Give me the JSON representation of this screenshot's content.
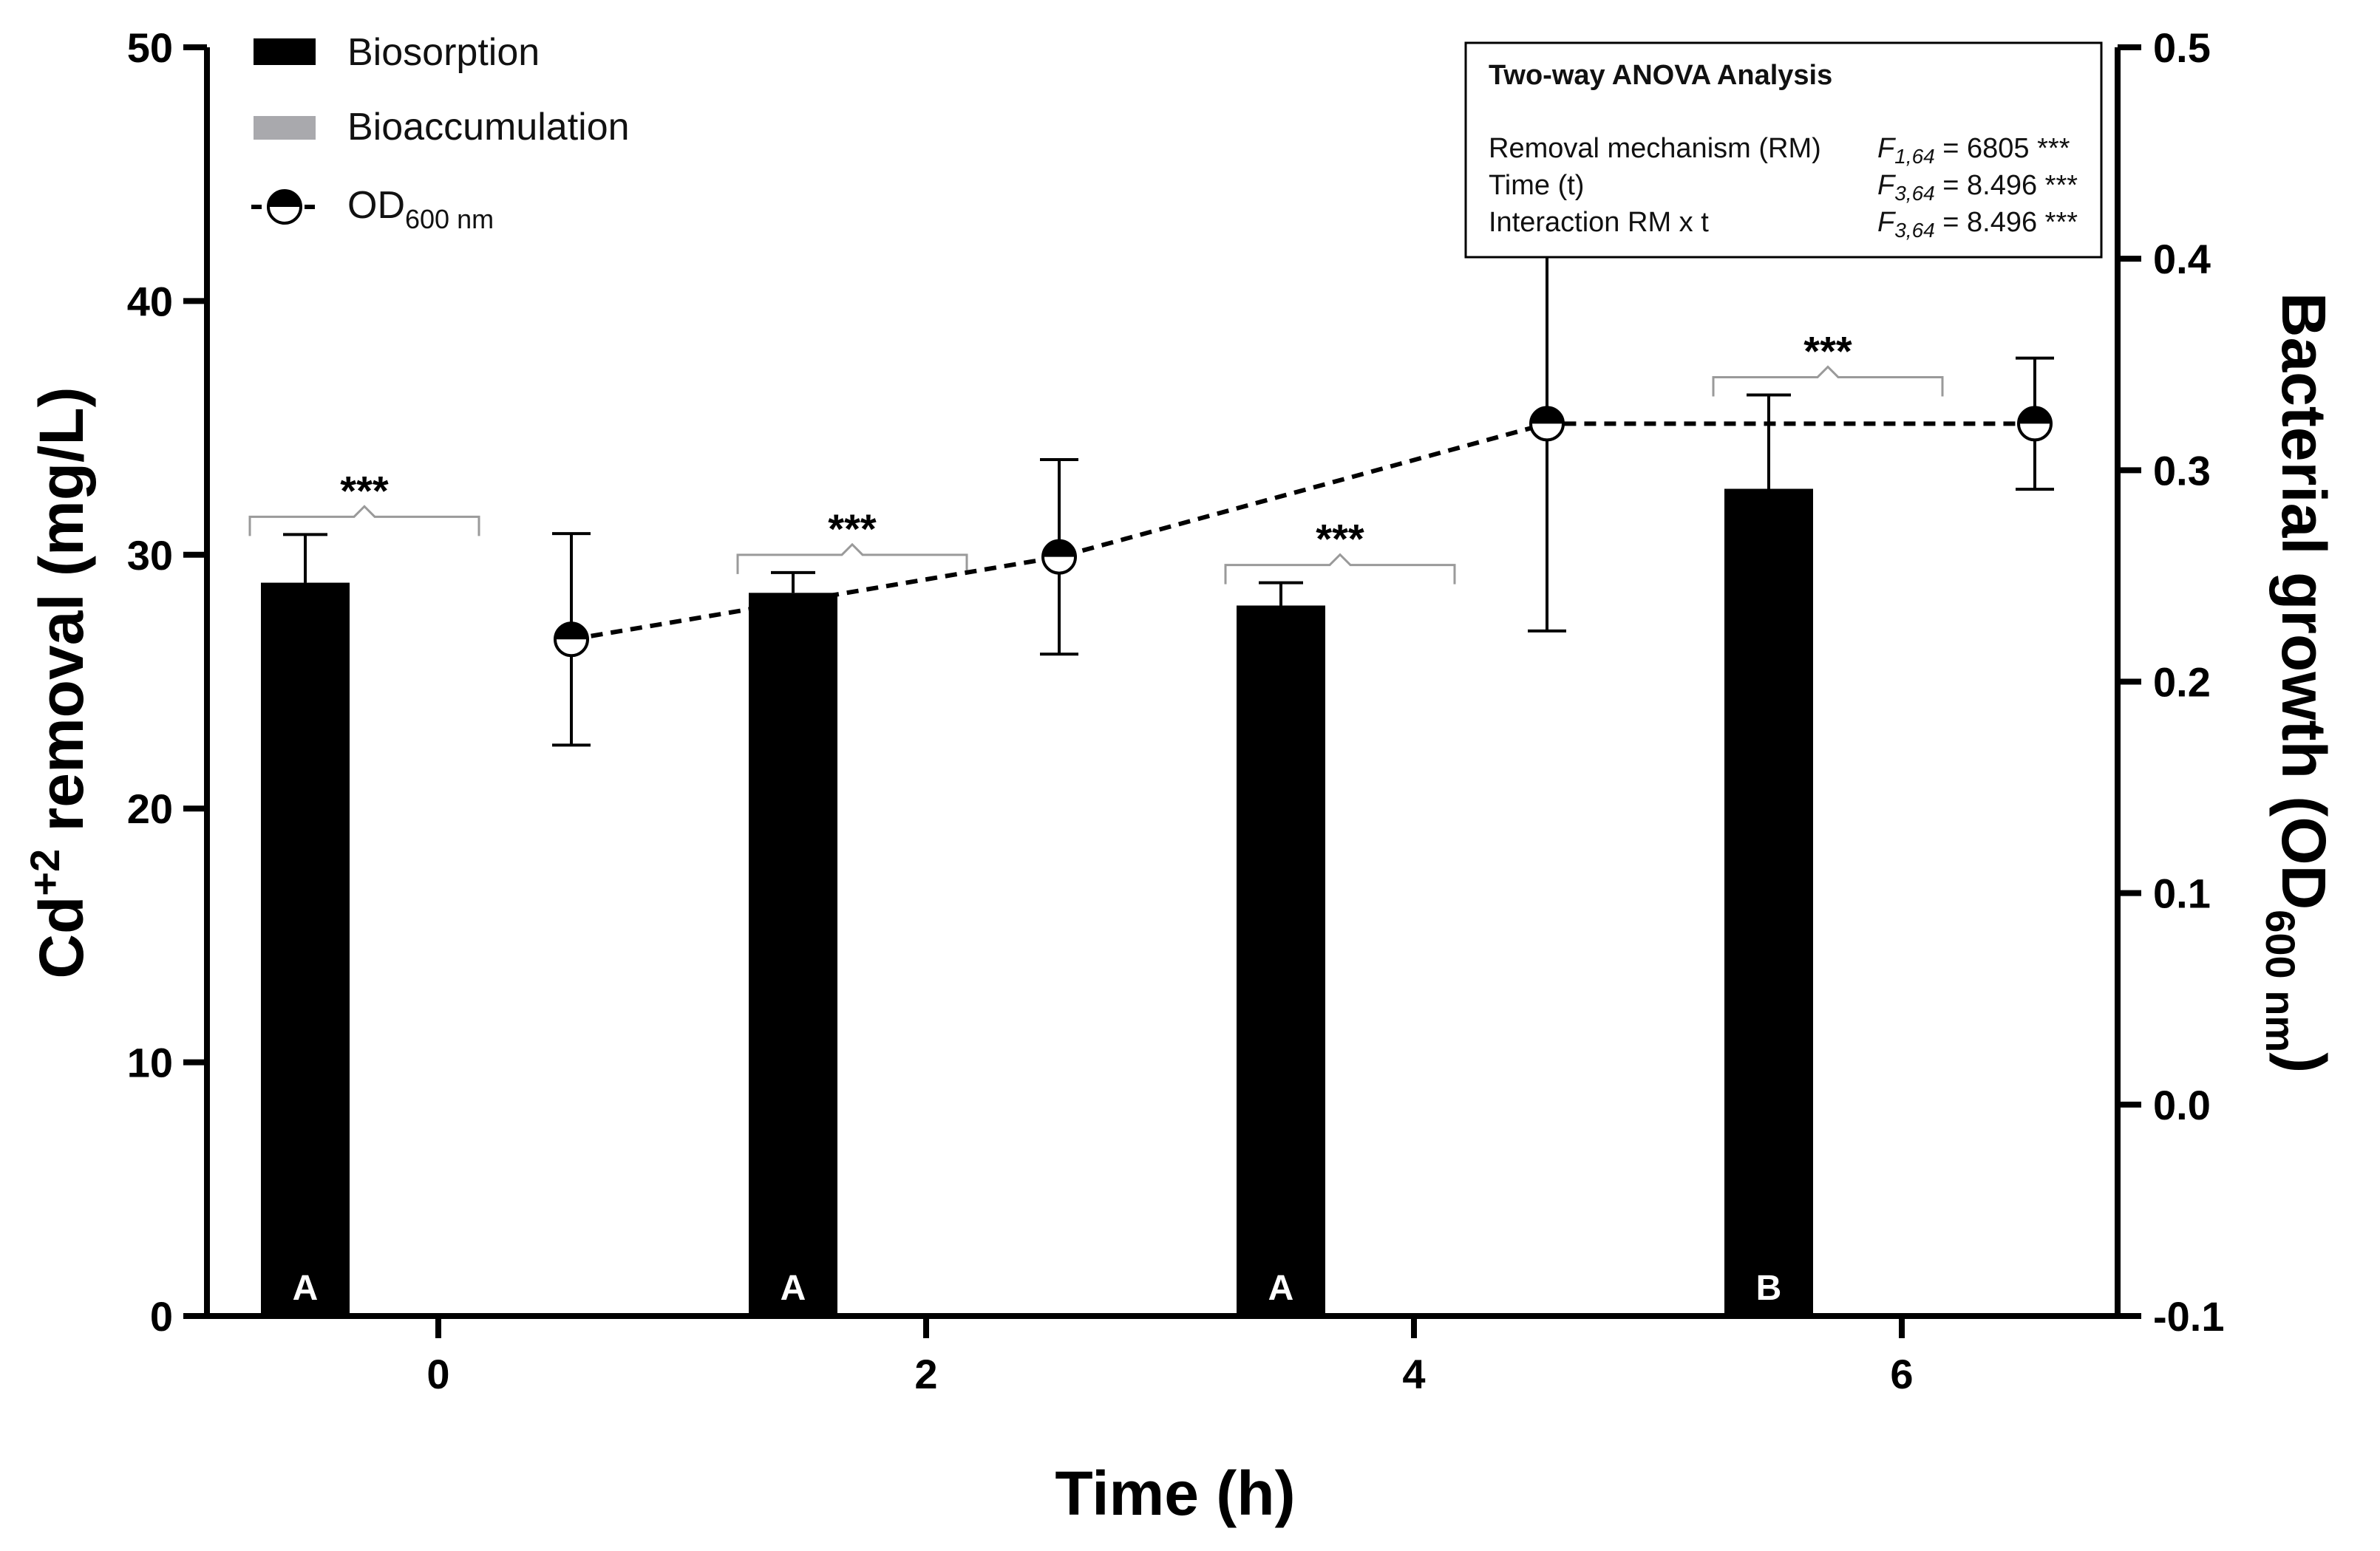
{
  "chart_data": {
    "type": "bar",
    "xlabel": "Time (h)",
    "ylabel": {
      "main": "Cd",
      "sup": "+2",
      "rest": " removal (mg/L)"
    },
    "y2label": {
      "main": "Bacterial growth (OD",
      "sub": "600 nm",
      "rest": ")"
    },
    "ylim": [
      0,
      50
    ],
    "y2lim": [
      -0.1,
      0.5
    ],
    "x_ticks": [
      "0",
      "2",
      "4",
      "6"
    ],
    "y_ticks": [
      "0",
      "10",
      "20",
      "30",
      "40",
      "50"
    ],
    "y2_ticks": [
      "-0.1",
      "0.0",
      "0.1",
      "0.2",
      "0.3",
      "0.4",
      "0.5"
    ],
    "legend": [
      {
        "name": "Biosorption",
        "color": "#000000",
        "kind": "bar"
      },
      {
        "name": "Bioaccumulation",
        "color": "#a9a9ad",
        "kind": "bar"
      },
      {
        "name": "OD",
        "sub": "600 nm",
        "kind": "line-marker"
      }
    ],
    "series": [
      {
        "name": "Biosorption",
        "time": [
          0,
          2,
          4,
          6
        ],
        "values": [
          28.9,
          28.5,
          28.0,
          32.6
        ],
        "errors": [
          1.9,
          0.8,
          0.9,
          3.7
        ],
        "letters": [
          "A",
          "A",
          "A",
          "B"
        ]
      },
      {
        "name": "Bioaccumulation",
        "time": [
          0,
          2,
          4,
          6
        ],
        "values": [
          0,
          0,
          0,
          0
        ]
      },
      {
        "name": "OD600 nm",
        "axis": "right",
        "time": [
          0,
          2,
          4,
          6
        ],
        "values": [
          0.22,
          0.259,
          0.322,
          0.322
        ],
        "errors": [
          0.05,
          0.046,
          0.098,
          0.031
        ]
      }
    ],
    "significance": [
      "***",
      "***",
      "***",
      "***"
    ],
    "annotation": {
      "title": "Two-way ANOVA Analysis",
      "rows": [
        {
          "label": "Removal mechanism (RM)",
          "stat": "F",
          "sub": "1,64",
          "value": " = 6805 ***"
        },
        {
          "label": "Time (t)",
          "stat": "F",
          "sub": "3,64",
          "value": " = 8.496 ***"
        },
        {
          "label": "Interaction RM x t",
          "stat": "F",
          "sub": "3,64",
          "value": " = 8.496 ***"
        }
      ]
    }
  }
}
